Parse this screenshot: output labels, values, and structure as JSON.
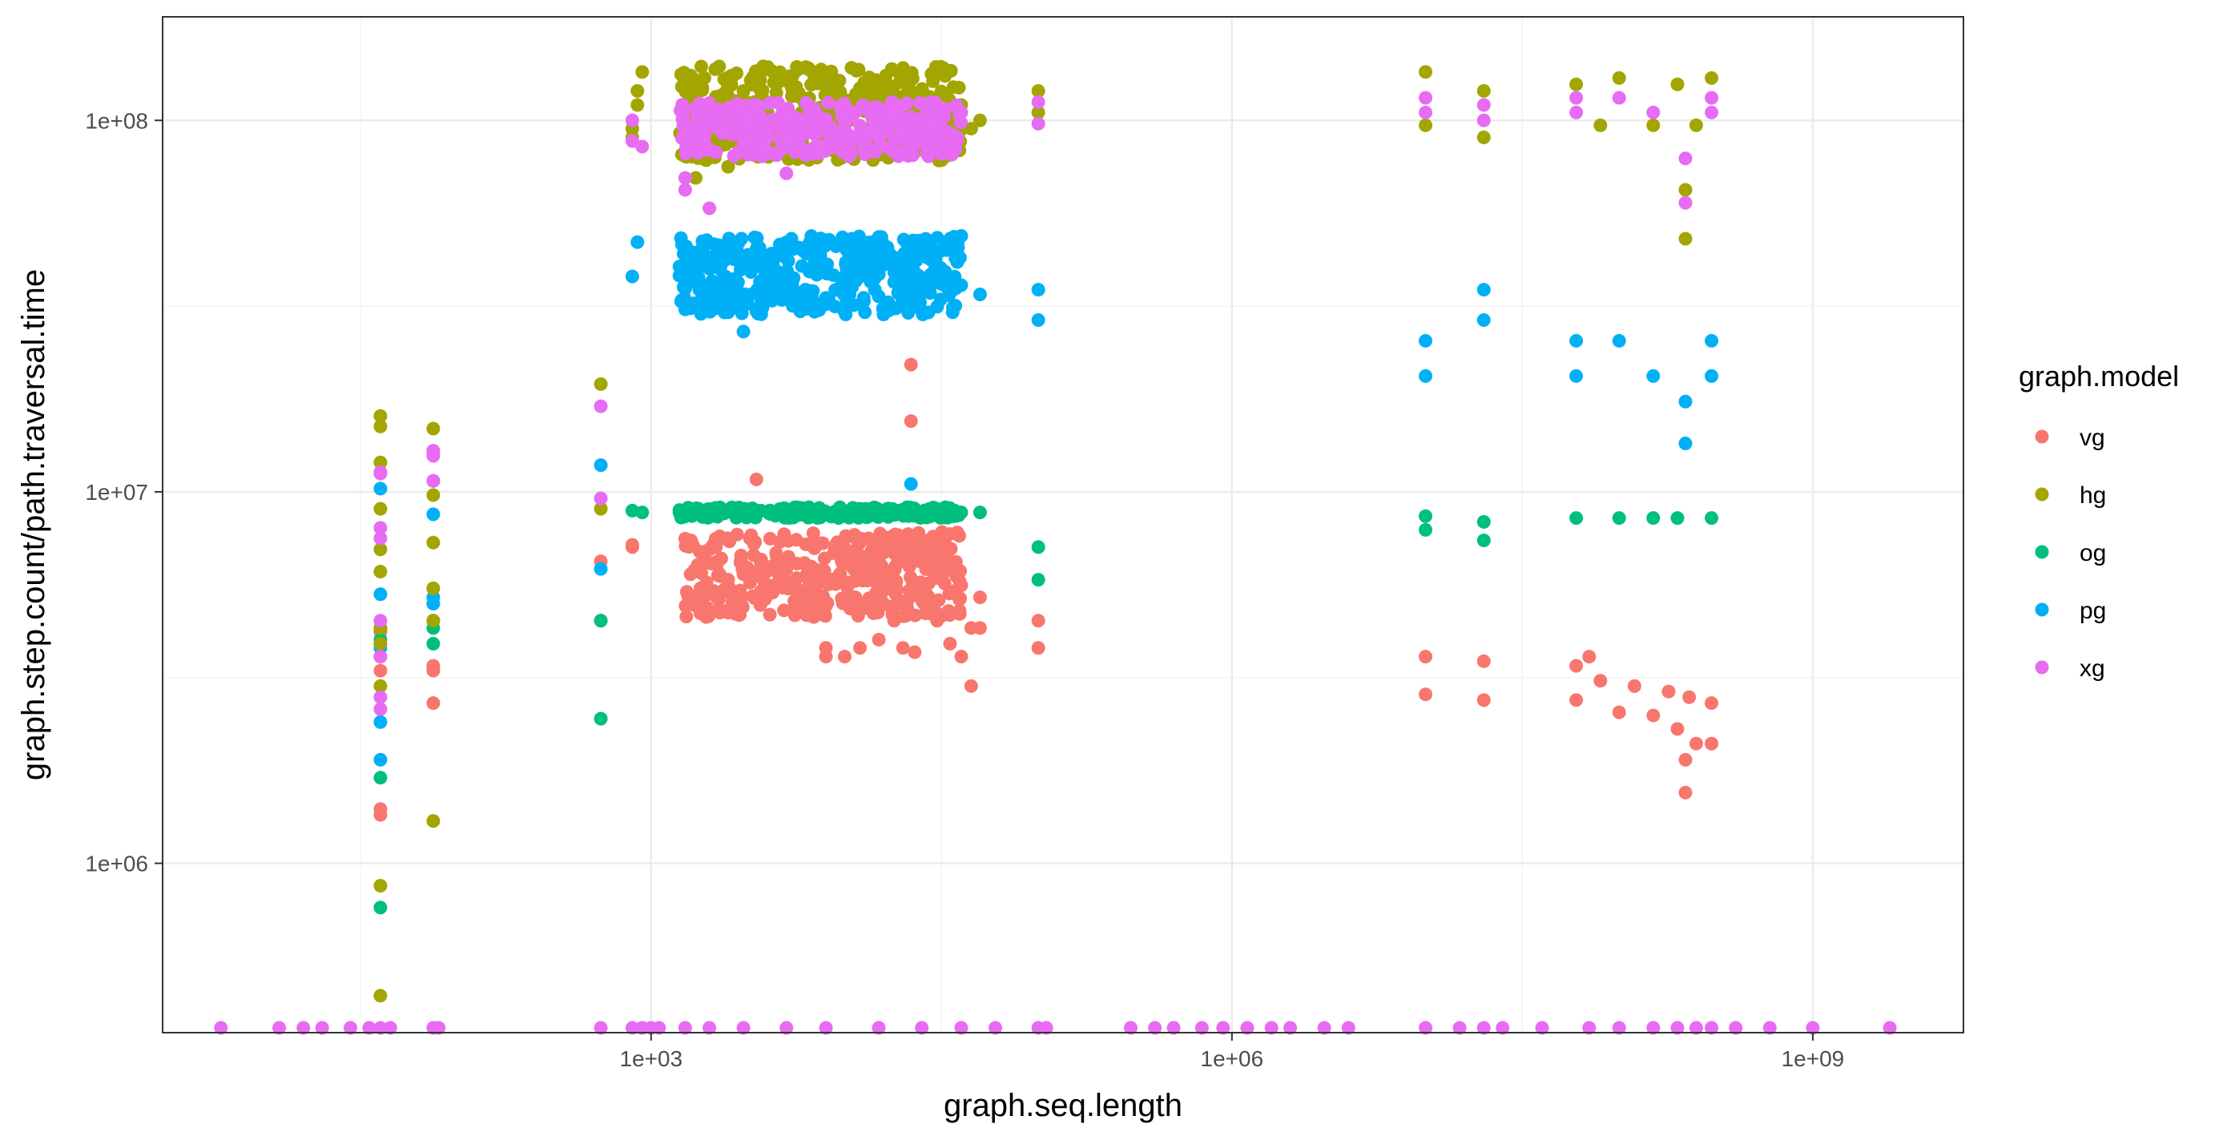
{
  "chart_data": {
    "type": "scatter",
    "xlabel": "graph.seq.length",
    "ylabel": "graph.step.count/path.traversal.time",
    "x_scale": "log10",
    "y_scale": "log10",
    "xlim": [
      3,
      6000000000
    ],
    "ylim": [
      350000,
      190000000
    ],
    "x_ticks": [
      1000,
      1000000,
      1000000000
    ],
    "x_tick_labels": [
      "1e+03",
      "1e+06",
      "1e+09"
    ],
    "y_ticks": [
      1000000,
      10000000,
      100000000
    ],
    "y_tick_labels": [
      "1e+06",
      "1e+07",
      "1e+08"
    ],
    "grid": true,
    "theme": "bw",
    "legend": {
      "title": "graph.model",
      "position": "right",
      "entries": [
        {
          "name": "vg",
          "color": "#F8766D"
        },
        {
          "name": "hg",
          "color": "#A3A500"
        },
        {
          "name": "og",
          "color": "#00BF7D"
        },
        {
          "name": "pg",
          "color": "#00B0F6"
        },
        {
          "name": "xg",
          "color": "#E76BF3"
        }
      ]
    },
    "series": [
      {
        "name": "vg",
        "color": "#F8766D",
        "points": [
          [
            40,
            1400000
          ],
          [
            40,
            1350000
          ],
          [
            40,
            3300000
          ],
          [
            40,
            3600000
          ],
          [
            40,
            4200000
          ],
          [
            75,
            2700000
          ],
          [
            75,
            3300000
          ],
          [
            75,
            3400000
          ],
          [
            75,
            4500000
          ],
          [
            75,
            5000000
          ],
          [
            550,
            4500000
          ],
          [
            550,
            6500000
          ],
          [
            800,
            7200000
          ],
          [
            800,
            7100000
          ],
          [
            1600,
            6000000
          ],
          [
            1700,
            5000000
          ],
          [
            1800,
            5500000
          ],
          [
            2000,
            7000000
          ],
          [
            2200,
            6500000
          ],
          [
            2500,
            5800000
          ],
          [
            3000,
            6000000
          ],
          [
            3500,
            10800000
          ],
          [
            4000,
            5500000
          ],
          [
            5000,
            6200000
          ],
          [
            6000,
            5000000
          ],
          [
            7000,
            4700000
          ],
          [
            8000,
            3800000
          ],
          [
            8000,
            3600000
          ],
          [
            9000,
            5800000
          ],
          [
            10000,
            3600000
          ],
          [
            12000,
            3800000
          ],
          [
            15000,
            4000000
          ],
          [
            18000,
            4500000
          ],
          [
            20000,
            3800000
          ],
          [
            22000,
            22000000
          ],
          [
            22000,
            15500000
          ],
          [
            23000,
            3700000
          ],
          [
            30000,
            4500000
          ],
          [
            35000,
            3900000
          ],
          [
            40000,
            3600000
          ],
          [
            40000,
            5600000
          ],
          [
            45000,
            4300000
          ],
          [
            45000,
            3000000
          ],
          [
            50000,
            5200000
          ],
          [
            50000,
            4300000
          ],
          [
            100000,
            3800000
          ],
          [
            100000,
            4500000
          ],
          [
            10000000,
            3600000
          ],
          [
            10000000,
            2850000
          ],
          [
            20000000,
            2750000
          ],
          [
            20000000,
            3500000
          ],
          [
            60000000,
            3400000
          ],
          [
            60000000,
            2750000
          ],
          [
            70000000,
            3600000
          ],
          [
            80000000,
            3100000
          ],
          [
            100000000,
            2550000
          ],
          [
            120000000,
            3000000
          ],
          [
            150000000,
            2500000
          ],
          [
            180000000,
            2900000
          ],
          [
            200000000,
            2300000
          ],
          [
            220000000,
            1900000
          ],
          [
            220000000,
            1550000
          ],
          [
            230000000,
            2800000
          ],
          [
            250000000,
            2100000
          ],
          [
            300000000,
            2100000
          ],
          [
            300000000,
            2700000
          ]
        ]
      },
      {
        "name": "hg",
        "color": "#A3A500",
        "points": [
          [
            40,
            870000
          ],
          [
            40,
            440000
          ],
          [
            40,
            3000000
          ],
          [
            40,
            3900000
          ],
          [
            40,
            4300000
          ],
          [
            40,
            6100000
          ],
          [
            40,
            7000000
          ],
          [
            40,
            9000000
          ],
          [
            40,
            12000000
          ],
          [
            40,
            15000000
          ],
          [
            40,
            16000000
          ],
          [
            75,
            1300000
          ],
          [
            75,
            4500000
          ],
          [
            75,
            5500000
          ],
          [
            75,
            7300000
          ],
          [
            75,
            9800000
          ],
          [
            75,
            12800000
          ],
          [
            75,
            14800000
          ],
          [
            550,
            9000000
          ],
          [
            550,
            19500000
          ],
          [
            800,
            90000000
          ],
          [
            800,
            95000000
          ],
          [
            850,
            110000000
          ],
          [
            850,
            120000000
          ],
          [
            900,
            135000000
          ],
          [
            1500,
            80000000
          ],
          [
            1700,
            70000000
          ],
          [
            2000,
            100000000
          ],
          [
            2500,
            75000000
          ],
          [
            3000,
            120000000
          ],
          [
            4000,
            105000000
          ],
          [
            5000,
            85000000
          ],
          [
            8000,
            125000000
          ],
          [
            10000,
            95000000
          ],
          [
            15000,
            110000000
          ],
          [
            20000,
            130000000
          ],
          [
            30000,
            100000000
          ],
          [
            40000,
            110000000
          ],
          [
            45000,
            95000000
          ],
          [
            50000,
            100000000
          ],
          [
            100000,
            120000000
          ],
          [
            100000,
            105000000
          ],
          [
            10000000,
            135000000
          ],
          [
            10000000,
            97000000
          ],
          [
            20000000,
            120000000
          ],
          [
            20000000,
            90000000
          ],
          [
            60000000,
            125000000
          ],
          [
            80000000,
            97000000
          ],
          [
            100000000,
            130000000
          ],
          [
            150000000,
            97000000
          ],
          [
            200000000,
            125000000
          ],
          [
            220000000,
            65000000
          ],
          [
            220000000,
            48000000
          ],
          [
            250000000,
            97000000
          ],
          [
            300000000,
            130000000
          ]
        ]
      },
      {
        "name": "og",
        "color": "#00BF7D",
        "points": [
          [
            40,
            760000
          ],
          [
            40,
            1700000
          ],
          [
            40,
            4000000
          ],
          [
            40,
            4300000
          ],
          [
            75,
            3900000
          ],
          [
            75,
            4300000
          ],
          [
            550,
            2450000
          ],
          [
            550,
            4500000
          ],
          [
            800,
            8900000
          ],
          [
            900,
            8800000
          ],
          [
            1500,
            8800000
          ],
          [
            3000,
            8900000
          ],
          [
            6000,
            8800000
          ],
          [
            10000,
            8700000
          ],
          [
            20000,
            8700000
          ],
          [
            40000,
            8800000
          ],
          [
            50000,
            8800000
          ],
          [
            100000,
            7100000
          ],
          [
            100000,
            5800000
          ],
          [
            10000000,
            8600000
          ],
          [
            10000000,
            7900000
          ],
          [
            20000000,
            8300000
          ],
          [
            20000000,
            7400000
          ],
          [
            60000000,
            8500000
          ],
          [
            100000000,
            8500000
          ],
          [
            150000000,
            8500000
          ],
          [
            200000000,
            8500000
          ],
          [
            300000000,
            8500000
          ]
        ]
      },
      {
        "name": "pg",
        "color": "#00B0F6",
        "points": [
          [
            40,
            1900000
          ],
          [
            40,
            2400000
          ],
          [
            40,
            3800000
          ],
          [
            40,
            5300000
          ],
          [
            40,
            10200000
          ],
          [
            75,
            5000000
          ],
          [
            75,
            5200000
          ],
          [
            75,
            8700000
          ],
          [
            75,
            10700000
          ],
          [
            550,
            11800000
          ],
          [
            550,
            6200000
          ],
          [
            800,
            38000000
          ],
          [
            850,
            47000000
          ],
          [
            1500,
            31000000
          ],
          [
            2000,
            42000000
          ],
          [
            3000,
            27000000
          ],
          [
            5000,
            45000000
          ],
          [
            10000,
            38000000
          ],
          [
            20000,
            40000000
          ],
          [
            22000,
            10500000
          ],
          [
            30000,
            44000000
          ],
          [
            40000,
            36000000
          ],
          [
            50000,
            34000000
          ],
          [
            100000,
            29000000
          ],
          [
            100000,
            35000000
          ],
          [
            10000000,
            25500000
          ],
          [
            10000000,
            20500000
          ],
          [
            20000000,
            35000000
          ],
          [
            20000000,
            29000000
          ],
          [
            60000000,
            25500000
          ],
          [
            60000000,
            20500000
          ],
          [
            100000000,
            25500000
          ],
          [
            150000000,
            20500000
          ],
          [
            220000000,
            13500000
          ],
          [
            220000000,
            17500000
          ],
          [
            300000000,
            25500000
          ],
          [
            300000000,
            20500000
          ]
        ]
      },
      {
        "name": "xg",
        "color": "#E76BF3",
        "points": [
          [
            40,
            2600000
          ],
          [
            40,
            2800000
          ],
          [
            40,
            3600000
          ],
          [
            40,
            4500000
          ],
          [
            40,
            7500000
          ],
          [
            40,
            8000000
          ],
          [
            40,
            11200000
          ],
          [
            40,
            11300000
          ],
          [
            75,
            10700000
          ],
          [
            75,
            12500000
          ],
          [
            75,
            12900000
          ],
          [
            550,
            9600000
          ],
          [
            550,
            17000000
          ],
          [
            800,
            88000000
          ],
          [
            800,
            100000000
          ],
          [
            900,
            85000000
          ],
          [
            1500,
            70000000
          ],
          [
            1500,
            65000000
          ],
          [
            2000,
            58000000
          ],
          [
            3000,
            95000000
          ],
          [
            4000,
            90000000
          ],
          [
            5000,
            72000000
          ],
          [
            10000,
            95000000
          ],
          [
            20000,
            100000000
          ],
          [
            40000,
            105000000
          ],
          [
            100000,
            112000000
          ],
          [
            100000,
            98000000
          ],
          [
            10000000,
            115000000
          ],
          [
            10000000,
            105000000
          ],
          [
            20000000,
            110000000
          ],
          [
            20000000,
            100000000
          ],
          [
            60000000,
            115000000
          ],
          [
            60000000,
            105000000
          ],
          [
            100000000,
            115000000
          ],
          [
            150000000,
            105000000
          ],
          [
            220000000,
            79000000
          ],
          [
            220000000,
            60000000
          ],
          [
            300000000,
            115000000
          ],
          [
            300000000,
            105000000
          ]
        ]
      }
    ],
    "bottom_clipped_points": {
      "color": "#E76BF3",
      "y": 350000,
      "x": [
        6,
        12,
        16,
        20,
        28,
        35,
        40,
        45,
        75,
        80,
        550,
        800,
        900,
        1000,
        1100,
        1500,
        2000,
        3000,
        5000,
        8000,
        15000,
        25000,
        40000,
        60000,
        100000,
        110000,
        300000,
        400000,
        500000,
        700000,
        900000,
        1200000,
        1600000,
        2000000,
        3000000,
        4000000,
        10000000,
        15000000,
        20000000,
        25000000,
        40000000,
        70000000,
        100000000,
        150000000,
        200000000,
        250000000,
        300000000,
        400000000,
        600000000,
        1000000000,
        2500000000
      ]
    }
  }
}
